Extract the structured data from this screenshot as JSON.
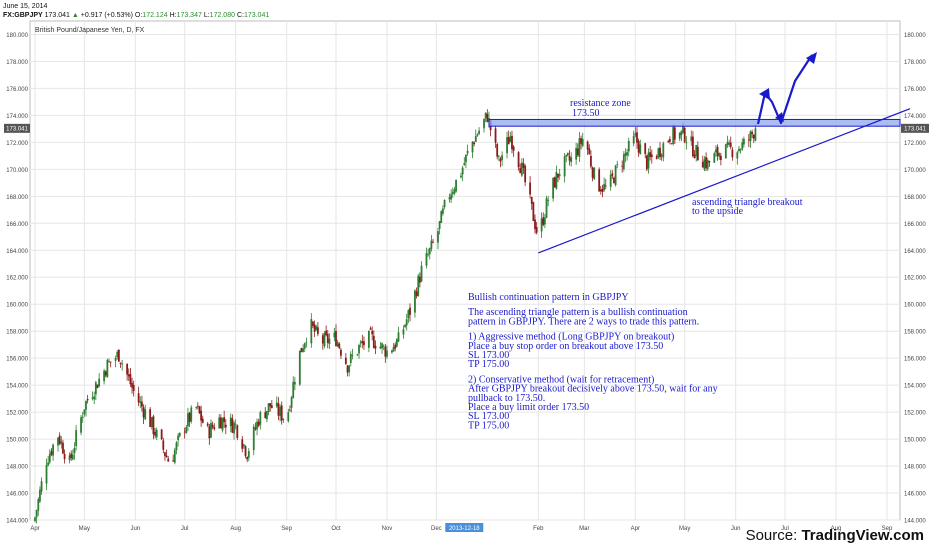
{
  "header": {
    "date": "June 15, 2014",
    "symbol": "FX:GBPJPY",
    "last": "173.041",
    "change": "+0.917 (+0.53%)",
    "open_label": "O:",
    "open": "172.124",
    "high_label": "H:",
    "high": "173.347",
    "low_label": "L:",
    "low": "172.080",
    "close_label": "C:",
    "close": "173.041"
  },
  "instrument_label": "British Pound/Japanese Yen, D, FX",
  "source_prefix": "Source: ",
  "source_name": "TradingView.com",
  "colors": {
    "up_candle": "#2e7d32",
    "down_candle": "#8b1a1a",
    "annotation": "#1a1acd",
    "resistance_fill": "#8fa8f0",
    "grid": "#e6e6e6"
  },
  "annotations": {
    "resistance_title": "resistance zone",
    "resistance_value": "173.50",
    "breakout_line1": "ascending triangle breakout",
    "breakout_line2": "to the upside",
    "note_lines": [
      "Bullish continuation pattern in GBPJPY",
      "",
      "The ascending triangle pattern is a bullish continuation",
      "pattern in GBPJPY. There are 2 ways to trade this pattern.",
      "",
      "1) Aggressive method (Long GBPJPY on breakout)",
      "Place a buy stop order on breakout above 173.50",
      "SL 173.00",
      "TP 175.00",
      "",
      "2) Conservative method (wait for retracement)",
      "After GBPJPY breakout decisively above 173.50, wait for any",
      "pullback to 173.50.",
      "Place a buy limit order 173.50",
      "SL 173.00",
      "TP 175.00"
    ]
  },
  "chart_data": {
    "type": "candlestick",
    "title": "British Pound/Japanese Yen, D, FX",
    "ylim": [
      144,
      181
    ],
    "y_ticks": [
      "144.000",
      "146.000",
      "148.000",
      "150.000",
      "152.000",
      "154.000",
      "156.000",
      "158.000",
      "160.000",
      "162.000",
      "164.000",
      "166.000",
      "168.000",
      "170.000",
      "172.000",
      "174.000",
      "176.000",
      "178.000",
      "180.000"
    ],
    "x_ticks": [
      "Apr",
      "May",
      "Jun",
      "Jul",
      "Aug",
      "Sep",
      "Oct",
      "Nov",
      "Dec",
      "2013-12-18",
      "Feb",
      "Mar",
      "Apr",
      "May",
      "Jun",
      "Jul",
      "Aug",
      "Sep"
    ],
    "last_price_label": "173.041",
    "resistance_zone": [
      173.2,
      173.7
    ],
    "close_path": [
      [
        "2013-04-01",
        144.2
      ],
      [
        "2013-04-08",
        148.5
      ],
      [
        "2013-04-15",
        150.3
      ],
      [
        "2013-04-22",
        148.2
      ],
      [
        "2013-05-01",
        152.5
      ],
      [
        "2013-05-08",
        154.0
      ],
      [
        "2013-05-15",
        155.5
      ],
      [
        "2013-05-22",
        156.3
      ],
      [
        "2013-06-01",
        153.2
      ],
      [
        "2013-06-08",
        151.8
      ],
      [
        "2013-06-15",
        150.0
      ],
      [
        "2013-06-22",
        148.2
      ],
      [
        "2013-07-01",
        151.0
      ],
      [
        "2013-07-08",
        152.3
      ],
      [
        "2013-07-15",
        150.5
      ],
      [
        "2013-07-22",
        151.5
      ],
      [
        "2013-08-01",
        151.0
      ],
      [
        "2013-08-08",
        149.0
      ],
      [
        "2013-08-15",
        151.5
      ],
      [
        "2013-08-22",
        152.5
      ],
      [
        "2013-09-01",
        151.5
      ],
      [
        "2013-09-08",
        156.0
      ],
      [
        "2013-09-15",
        158.5
      ],
      [
        "2013-09-22",
        157.2
      ],
      [
        "2013-10-01",
        157.5
      ],
      [
        "2013-10-08",
        155.5
      ],
      [
        "2013-10-15",
        156.8
      ],
      [
        "2013-10-22",
        157.5
      ],
      [
        "2013-11-01",
        156.5
      ],
      [
        "2013-11-08",
        157.3
      ],
      [
        "2013-11-15",
        159.5
      ],
      [
        "2013-11-22",
        162.5
      ],
      [
        "2013-12-01",
        165.0
      ],
      [
        "2013-12-08",
        168.0
      ],
      [
        "2013-12-15",
        169.5
      ],
      [
        "2013-12-22",
        171.8
      ],
      [
        "2014-01-01",
        174.0
      ],
      [
        "2014-01-08",
        170.5
      ],
      [
        "2014-01-15",
        172.5
      ],
      [
        "2014-01-22",
        170.0
      ],
      [
        "2014-02-01",
        165.0
      ],
      [
        "2014-02-08",
        168.3
      ],
      [
        "2014-02-15",
        170.2
      ],
      [
        "2014-02-22",
        170.8
      ],
      [
        "2014-03-01",
        172.5
      ],
      [
        "2014-03-08",
        169.0
      ],
      [
        "2014-03-15",
        168.5
      ],
      [
        "2014-03-22",
        170.3
      ],
      [
        "2014-04-01",
        172.3
      ],
      [
        "2014-04-08",
        170.5
      ],
      [
        "2014-04-15",
        171.3
      ],
      [
        "2014-04-22",
        172.5
      ],
      [
        "2014-05-01",
        172.6
      ],
      [
        "2014-05-08",
        171.2
      ],
      [
        "2014-05-15",
        170.4
      ],
      [
        "2014-05-22",
        171.3
      ],
      [
        "2014-06-01",
        171.5
      ],
      [
        "2014-06-08",
        172.0
      ],
      [
        "2014-06-13",
        173.041
      ]
    ],
    "trendline": {
      "from": [
        "2014-02-01",
        163.8
      ],
      "to": [
        "2014-09-15",
        174.5
      ]
    }
  }
}
